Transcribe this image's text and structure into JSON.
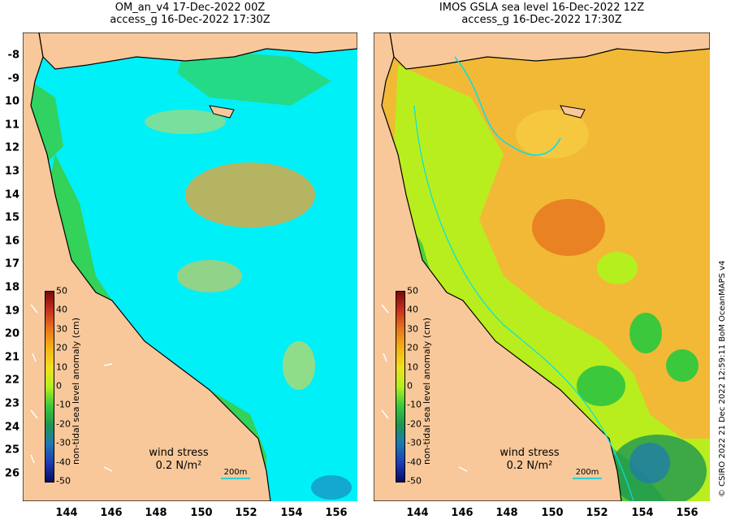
{
  "left_panel": {
    "title_line1": "OM_an_v4  17-Dec-2022 00Z",
    "title_line2": "access_g 16-Dec-2022 17:30Z",
    "wind_label": "wind stress",
    "wind_value": "0.2 N/m²",
    "scale_label": "200m"
  },
  "right_panel": {
    "title_line1": "IMOS GSLA sea level  16-Dec-2022 12Z",
    "title_line2": "access_g 16-Dec-2022 17:30Z",
    "wind_label": "wind stress",
    "wind_value": "0.2 N/m²",
    "scale_label": "200m"
  },
  "y_axis_labels": [
    "-8",
    "-9",
    "10",
    "11",
    "12",
    "13",
    "14",
    "15",
    "16",
    "17",
    "18",
    "19",
    "20",
    "21",
    "22",
    "23",
    "24",
    "25",
    "26"
  ],
  "x_axis_labels": [
    "144",
    "146",
    "148",
    "150",
    "152",
    "154",
    "156"
  ],
  "colorbar": {
    "title": "non-tidal sea level anomaly (cm)",
    "ticks": [
      "50",
      "40",
      "30",
      "20",
      "10",
      "0",
      "-10",
      "-20",
      "-30",
      "-40",
      "-50"
    ],
    "colors": [
      "#7a0a0a",
      "#c8321e",
      "#e8781e",
      "#f5b414",
      "#f0e01e",
      "#b4f01e",
      "#3cc83c",
      "#1e9650",
      "#1e78b4",
      "#1e3cb4",
      "#0a0a64"
    ]
  },
  "colors": {
    "land": "#f8c89a",
    "coastline": "#000000",
    "ocean_cyan": "#00f0f8",
    "anomaly_orange": "#f0a030",
    "anomaly_green": "#3ccc3c"
  },
  "credit": "© CSIRO 2022  21 Dec 2022 12:59:11 BoM OceanMAPS v4"
}
